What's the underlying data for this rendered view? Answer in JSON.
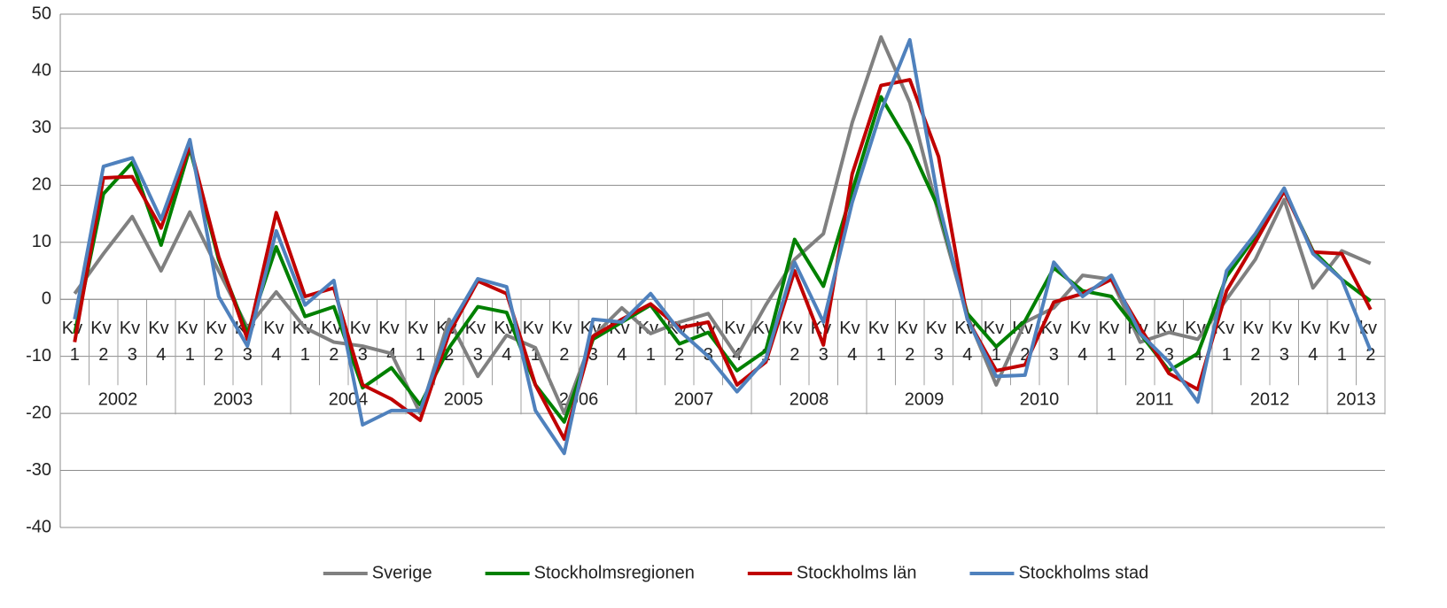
{
  "chart_data": {
    "type": "line",
    "groups": [
      {
        "label": "2002",
        "categories": [
          "Kv 1",
          "Kv 2",
          "Kv 3",
          "Kv 4"
        ]
      },
      {
        "label": "2003",
        "categories": [
          "Kv 1",
          "Kv 2",
          "Kv 3",
          "Kv 4"
        ]
      },
      {
        "label": "2004",
        "categories": [
          "Kv 1",
          "Kv 2",
          "Kv 3",
          "Kv 4"
        ]
      },
      {
        "label": "2005",
        "categories": [
          "Kv 1",
          "Kv 2",
          "Kv 3",
          "Kv 4"
        ]
      },
      {
        "label": "2006",
        "categories": [
          "Kv 1",
          "Kv 2",
          "Kv 3",
          "Kv 4"
        ]
      },
      {
        "label": "2007",
        "categories": [
          "Kv 1",
          "Kv 2",
          "Kv 3",
          "Kv 4"
        ]
      },
      {
        "label": "2008",
        "categories": [
          "Kv 1",
          "Kv 2",
          "Kv 3",
          "Kv 4"
        ]
      },
      {
        "label": "2009",
        "categories": [
          "Kv 1",
          "Kv 2",
          "Kv 3",
          "Kv 4"
        ]
      },
      {
        "label": "2010",
        "categories": [
          "Kv 1",
          "Kv 2",
          "Kv 3",
          "Kv 4"
        ]
      },
      {
        "label": "2011",
        "categories": [
          "Kv 1",
          "Kv 2",
          "Kv 3",
          "Kv 4"
        ]
      },
      {
        "label": "2012",
        "categories": [
          "Kv 1",
          "Kv 2",
          "Kv 3",
          "Kv 4"
        ]
      },
      {
        "label": "2013",
        "categories": [
          "Kv 1",
          "kv 2"
        ]
      }
    ],
    "series": [
      {
        "name": "Sverige",
        "color": "#808080",
        "values": [
          1,
          8,
          14.5,
          5,
          15.3,
          5,
          -5,
          1.3,
          -5,
          -7.5,
          -8.2,
          -9.5,
          -20,
          -3.5,
          -13.5,
          -6.3,
          -8.5,
          -20,
          -6.5,
          -1.5,
          -6,
          -4,
          -2.5,
          -10,
          -1,
          7,
          11.5,
          31,
          46,
          34.5,
          15,
          -3,
          -15,
          -4,
          -1.5,
          4.2,
          3.5,
          -7.5,
          -5.8,
          -7,
          0,
          7,
          17.5,
          2,
          8.5,
          6.3
        ]
      },
      {
        "name": "Stockholmsregionen",
        "color": "#008000",
        "values": [
          -6,
          18.5,
          24,
          9.5,
          26.5,
          7,
          -6,
          9.2,
          -3,
          -1.3,
          -15.5,
          -12,
          -18.5,
          -8.5,
          -1.3,
          -2.3,
          -15,
          -21.5,
          -7,
          -4,
          -1,
          -7.8,
          -5.8,
          -12.5,
          -9,
          10.5,
          2.3,
          19,
          35.5,
          27,
          16,
          -2.5,
          -8.3,
          -3.8,
          5.5,
          1.5,
          0.5,
          -6,
          -12.5,
          -9.5,
          4,
          11,
          19,
          8.5,
          3.5,
          -0.3
        ]
      },
      {
        "name": "Stockholms län",
        "color": "#c00000",
        "values": [
          -7.5,
          21.3,
          21.5,
          12.5,
          27,
          7.5,
          -7,
          15.2,
          0.5,
          2,
          -15,
          -17.5,
          -21.2,
          -6,
          3.2,
          1,
          -15,
          -24.5,
          -6.5,
          -3.5,
          -0.8,
          -5,
          -4,
          -15,
          -11,
          5,
          -8,
          22,
          37.5,
          38.5,
          25,
          -3.5,
          -12.5,
          -11.5,
          -0.5,
          1,
          3.5,
          -5,
          -13,
          -15.8,
          1.5,
          10,
          19,
          8.3,
          8,
          -1.8
        ]
      },
      {
        "name": "Stockholms stad",
        "color": "#4f81bd",
        "values": [
          -3.5,
          23.3,
          24.8,
          14,
          28,
          0.5,
          -8.2,
          12,
          -1,
          3.3,
          -22,
          -19.5,
          -19.5,
          -5,
          3.6,
          2.2,
          -19.5,
          -27,
          -3.5,
          -4,
          1,
          -5.5,
          -10,
          -16.2,
          -10.5,
          6.5,
          -4,
          17,
          33,
          45.5,
          17,
          -3.5,
          -13.5,
          -13.3,
          6.5,
          0.5,
          4.2,
          -6,
          -11,
          -18,
          5,
          11.5,
          19.5,
          8,
          3.5,
          -9
        ]
      }
    ],
    "ylim": [
      -40,
      50
    ],
    "yticks": [
      -40,
      -30,
      -20,
      -10,
      0,
      10,
      20,
      30,
      40,
      50
    ],
    "grid": true,
    "legend": "bottom"
  }
}
